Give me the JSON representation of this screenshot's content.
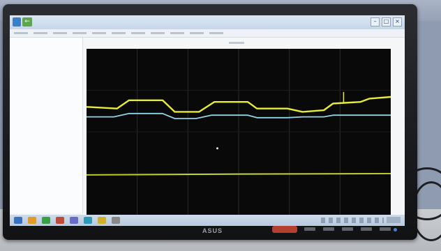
{
  "app": {
    "title": ""
  },
  "scope": {
    "background": "#090909",
    "grid_divisions": {
      "x": 6,
      "y": 4
    },
    "traces": [
      {
        "color": "#e6ec3a",
        "points": [
          [
            0,
            0.35
          ],
          [
            0.1,
            0.36
          ],
          [
            0.14,
            0.31
          ],
          [
            0.25,
            0.31
          ],
          [
            0.29,
            0.38
          ],
          [
            0.37,
            0.38
          ],
          [
            0.42,
            0.32
          ],
          [
            0.53,
            0.32
          ],
          [
            0.56,
            0.36
          ],
          [
            0.66,
            0.36
          ],
          [
            0.71,
            0.38
          ],
          [
            0.78,
            0.37
          ],
          [
            0.81,
            0.33
          ],
          [
            0.9,
            0.32
          ],
          [
            0.93,
            0.3
          ],
          [
            1,
            0.29
          ]
        ]
      },
      {
        "color": "#8fd3e8",
        "points": [
          [
            0,
            0.41
          ],
          [
            0.09,
            0.41
          ],
          [
            0.14,
            0.39
          ],
          [
            0.25,
            0.39
          ],
          [
            0.29,
            0.42
          ],
          [
            0.36,
            0.42
          ],
          [
            0.41,
            0.4
          ],
          [
            0.53,
            0.4
          ],
          [
            0.56,
            0.415
          ],
          [
            0.66,
            0.415
          ],
          [
            0.71,
            0.41
          ],
          [
            0.78,
            0.41
          ],
          [
            0.81,
            0.4
          ],
          [
            1,
            0.4
          ]
        ]
      },
      {
        "color": "#cfdc2a",
        "points": [
          [
            0,
            0.76
          ],
          [
            0.5,
            0.755
          ],
          [
            1,
            0.752
          ]
        ]
      }
    ],
    "spike": {
      "x": 0.845,
      "from": 0.33,
      "to": 0.26,
      "color": "#e6ec3a"
    }
  },
  "taskbar": {
    "icon_colors": [
      "#3a70c0",
      "#e29a2a",
      "#3aa048",
      "#c04a3a",
      "#6a6ac8",
      "#2e9ab8",
      "#d0b02a",
      "#888888"
    ]
  },
  "monitor": {
    "brand": "ASUS",
    "led_color": "#4d7fd6"
  }
}
